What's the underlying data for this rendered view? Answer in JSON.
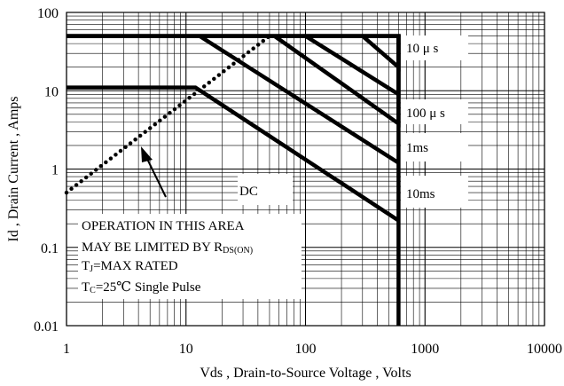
{
  "chart_data": {
    "type": "line",
    "title": "",
    "xlabel": "Vds , Drain-to-Source Voltage , Volts",
    "ylabel": "Id , Drain Current , Amps",
    "x_scale": "log",
    "y_scale": "log",
    "xlim": [
      1,
      10000
    ],
    "ylim": [
      0.01,
      100
    ],
    "x_ticks": [
      "1",
      "10",
      "100",
      "1000",
      "10000"
    ],
    "y_ticks": [
      "0.01",
      "0.1",
      "1",
      "10",
      "100"
    ],
    "grid": true,
    "series": [
      {
        "name": "10 μ s",
        "points": [
          [
            1,
            50
          ],
          [
            600,
            50
          ],
          [
            600,
            20
          ],
          [
            300,
            50
          ]
        ]
      },
      {
        "name": "100 μ s",
        "points": [
          [
            1,
            50
          ],
          [
            600,
            50
          ],
          [
            600,
            9
          ],
          [
            100,
            50
          ]
        ]
      },
      {
        "name": "1ms",
        "points": [
          [
            1,
            50
          ],
          [
            600,
            50
          ],
          [
            600,
            3.8
          ],
          [
            55,
            50
          ]
        ]
      },
      {
        "name": "",
        "points": [
          [
            13,
            50
          ],
          [
            600,
            1.2
          ]
        ]
      },
      {
        "name": "DC",
        "points": [
          [
            1,
            11
          ],
          [
            12,
            11
          ],
          [
            600,
            0.22
          ]
        ]
      },
      {
        "name": "",
        "points": [
          [
            600,
            50
          ],
          [
            600,
            0.01
          ]
        ]
      }
    ],
    "rds_on_limit": {
      "points": [
        [
          1,
          0.5
        ],
        [
          50,
          50
        ]
      ]
    },
    "series_labels": [
      "10 μ s",
      "100 μ s",
      "1ms",
      "10ms",
      "DC"
    ],
    "annotations": {
      "line1": "OPERATION IN THIS AREA",
      "line2_main": "MAY BE LIMITED BY R",
      "line2_sub": "DS(ON)",
      "line3_main": "T",
      "line3_sub": "J",
      "line3_rest": "=MAX RATED",
      "line4_main": "T",
      "line4_sub": "C",
      "line4_rest": "=25℃  Single Pulse"
    }
  }
}
